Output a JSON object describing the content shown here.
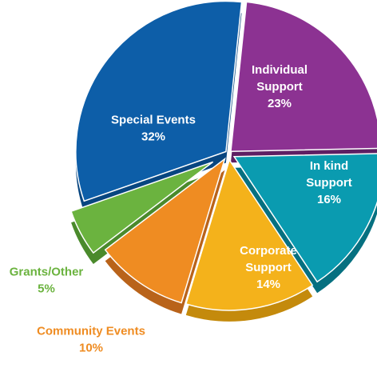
{
  "chart_data": {
    "type": "pie",
    "title": "",
    "slices": [
      {
        "label_lines": [
          "Individual",
          "Support"
        ],
        "value": 23,
        "value_label": "23%",
        "color": "#8c3292",
        "side_color": "#5e1f63",
        "label_color": "#ffffff"
      },
      {
        "label_lines": [
          "In kind",
          "Support"
        ],
        "value": 16,
        "value_label": "16%",
        "color": "#0a9bb0",
        "side_color": "#067080",
        "label_color": "#ffffff"
      },
      {
        "label_lines": [
          "Corporate",
          "Support"
        ],
        "value": 14,
        "value_label": "14%",
        "color": "#f4b21b",
        "side_color": "#c48a0c",
        "label_color": "#ffffff"
      },
      {
        "label_lines": [
          "Community Events"
        ],
        "value": 10,
        "value_label": "10%",
        "color": "#ef8c22",
        "side_color": "#b9631a",
        "label_color": "#ef8c22"
      },
      {
        "label_lines": [
          "Grants/Other"
        ],
        "value": 5,
        "value_label": "5%",
        "color": "#6bb33f",
        "side_color": "#4a8a2c",
        "label_color": "#6bb33f"
      },
      {
        "label_lines": [
          "Special Events"
        ],
        "value": 32,
        "value_label": "32%",
        "color": "#0d5ea8",
        "side_color": "#084680",
        "label_color": "#ffffff"
      }
    ]
  }
}
